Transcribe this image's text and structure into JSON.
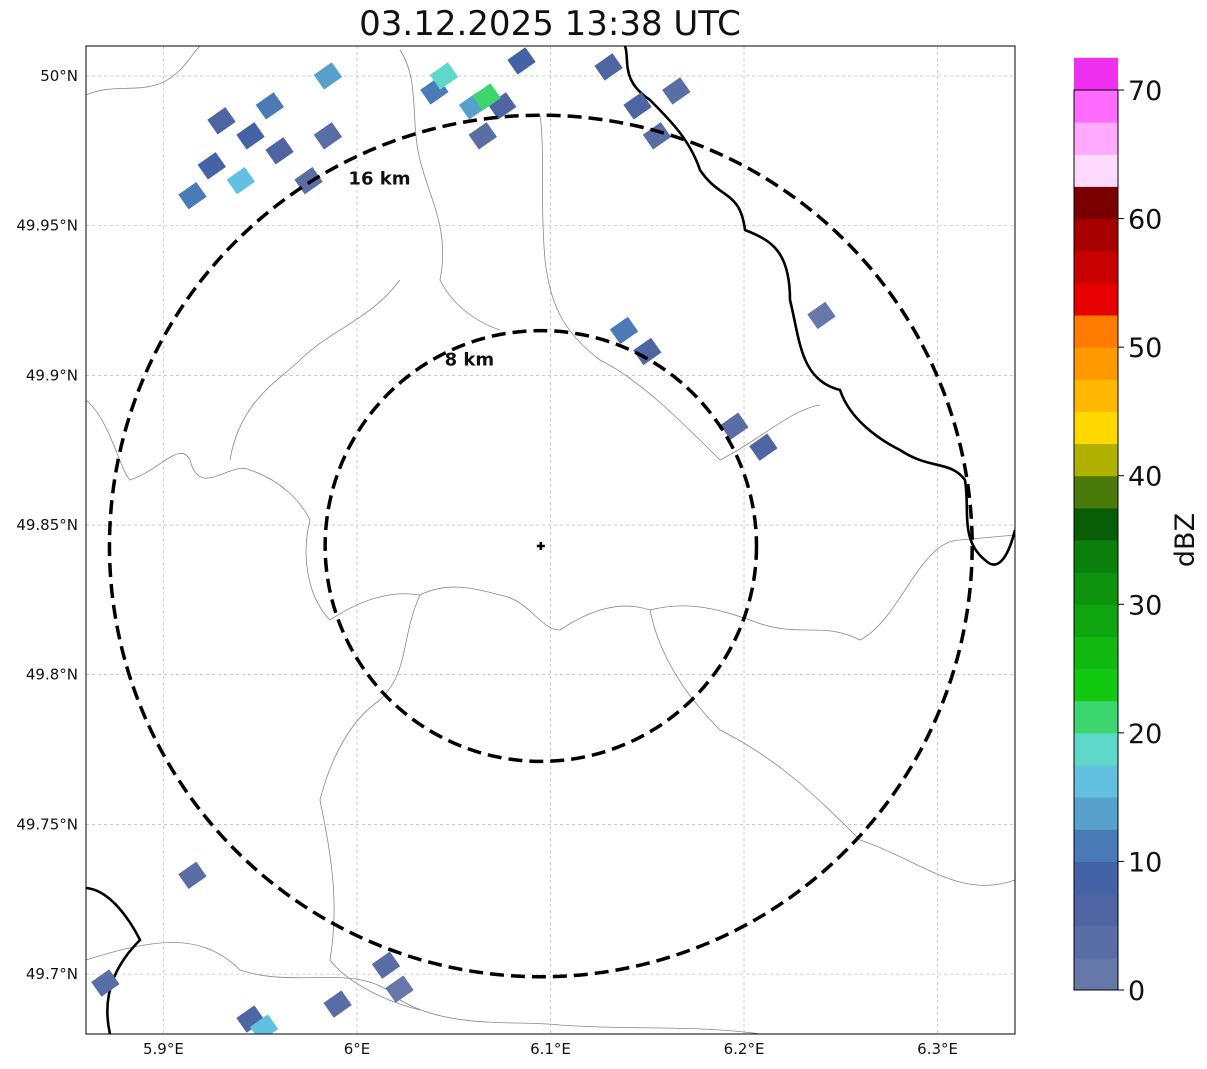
{
  "title": "03.12.2025 13:38 UTC",
  "map": {
    "lon_range": [
      5.86,
      6.34
    ],
    "lat_range": [
      49.68,
      50.01
    ],
    "lon_ticks": [
      {
        "value": 5.9,
        "label": "5.9°E"
      },
      {
        "value": 6.0,
        "label": "6°E"
      },
      {
        "value": 6.1,
        "label": "6.1°E"
      },
      {
        "value": 6.2,
        "label": "6.2°E"
      },
      {
        "value": 6.3,
        "label": "6.3°E"
      }
    ],
    "lat_ticks": [
      {
        "value": 49.7,
        "label": "49.7°N"
      },
      {
        "value": 49.75,
        "label": "49.75°N"
      },
      {
        "value": 49.8,
        "label": "49.8°N"
      },
      {
        "value": 49.85,
        "label": "49.85°N"
      },
      {
        "value": 49.9,
        "label": "49.9°N"
      },
      {
        "value": 49.95,
        "label": "49.95°N"
      },
      {
        "value": 50.0,
        "label": "50°N"
      }
    ],
    "center": {
      "lon": 6.095,
      "lat": 49.843
    },
    "rings": [
      {
        "radius_km": 8,
        "label": "8 km"
      },
      {
        "radius_km": 16,
        "label": "16 km"
      }
    ],
    "echoes": [
      {
        "lon": 5.96,
        "lat": 49.975,
        "dbz": 6
      },
      {
        "lon": 5.975,
        "lat": 49.965,
        "dbz": 4
      },
      {
        "lon": 5.945,
        "lat": 49.98,
        "dbz": 8
      },
      {
        "lon": 5.93,
        "lat": 49.985,
        "dbz": 5
      },
      {
        "lon": 5.955,
        "lat": 49.99,
        "dbz": 12
      },
      {
        "lon": 5.94,
        "lat": 49.965,
        "dbz": 17
      },
      {
        "lon": 5.925,
        "lat": 49.97,
        "dbz": 9
      },
      {
        "lon": 5.985,
        "lat": 49.98,
        "dbz": 3
      },
      {
        "lon": 5.915,
        "lat": 49.96,
        "dbz": 11
      },
      {
        "lon": 6.04,
        "lat": 49.995,
        "dbz": 10
      },
      {
        "lon": 6.045,
        "lat": 50.0,
        "dbz": 19
      },
      {
        "lon": 6.06,
        "lat": 49.99,
        "dbz": 14
      },
      {
        "lon": 6.075,
        "lat": 49.99,
        "dbz": 6
      },
      {
        "lon": 6.067,
        "lat": 49.993,
        "dbz": 22
      },
      {
        "lon": 6.085,
        "lat": 50.005,
        "dbz": 9
      },
      {
        "lon": 6.065,
        "lat": 49.98,
        "dbz": 4
      },
      {
        "lon": 6.13,
        "lat": 50.003,
        "dbz": 5
      },
      {
        "lon": 6.145,
        "lat": 49.99,
        "dbz": 7
      },
      {
        "lon": 6.155,
        "lat": 49.98,
        "dbz": 4
      },
      {
        "lon": 6.165,
        "lat": 49.995,
        "dbz": 3
      },
      {
        "lon": 5.985,
        "lat": 50.0,
        "dbz": 13
      },
      {
        "lon": 6.138,
        "lat": 49.915,
        "dbz": 12
      },
      {
        "lon": 6.15,
        "lat": 49.908,
        "dbz": 5
      },
      {
        "lon": 6.195,
        "lat": 49.883,
        "dbz": 4
      },
      {
        "lon": 6.21,
        "lat": 49.876,
        "dbz": 5
      },
      {
        "lon": 6.24,
        "lat": 49.92,
        "dbz": 1
      },
      {
        "lon": 5.915,
        "lat": 49.733,
        "dbz": 3
      },
      {
        "lon": 6.015,
        "lat": 49.703,
        "dbz": 4
      },
      {
        "lon": 6.022,
        "lat": 49.695,
        "dbz": 2
      },
      {
        "lon": 5.87,
        "lat": 49.697,
        "dbz": 3
      },
      {
        "lon": 5.945,
        "lat": 49.685,
        "dbz": 6
      },
      {
        "lon": 5.952,
        "lat": 49.682,
        "dbz": 16
      },
      {
        "lon": 5.99,
        "lat": 49.69,
        "dbz": 4
      }
    ]
  },
  "colorbar": {
    "label": "dBZ",
    "ticks": [
      0,
      10,
      20,
      30,
      40,
      50,
      60,
      70
    ],
    "min": 0,
    "max": 70,
    "step": 2.5,
    "colors": [
      "#6677aa",
      "#5a6ea6",
      "#4e64a3",
      "#4462a6",
      "#4a7bb6",
      "#58a0cc",
      "#62c0e0",
      "#5ed8c8",
      "#3dd66e",
      "#12c912",
      "#10b810",
      "#0fa50f",
      "#0e930e",
      "#0c800c",
      "#075e07",
      "#4a7a0a",
      "#b0b000",
      "#ffd800",
      "#ffb800",
      "#ff9900",
      "#ff7a00",
      "#e60000",
      "#c80000",
      "#a80000",
      "#7a0000",
      "#ffdaff",
      "#ffaaff",
      "#ff6aff",
      "#f030f0"
    ]
  }
}
